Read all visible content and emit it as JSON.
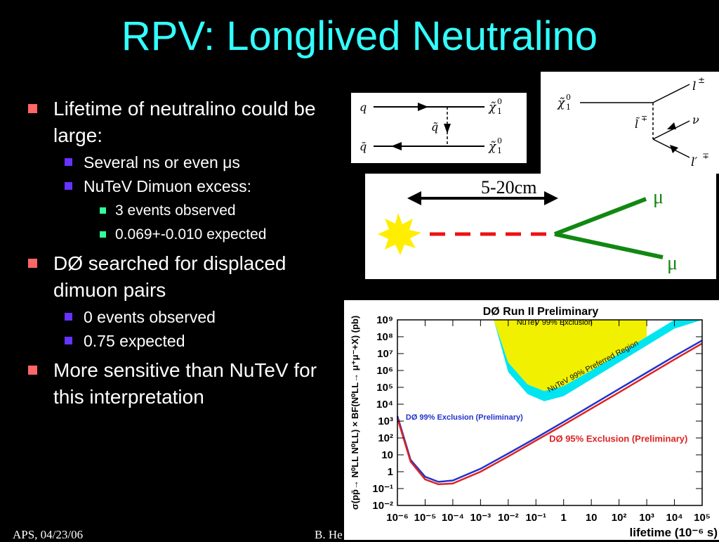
{
  "title": "RPV: Longlived Neutralino",
  "bullets": {
    "b1": "Lifetime of neutralino could be large:",
    "b1_sub1": "Several ns or even μs",
    "b1_sub2": "NuTeV Dimuon excess:",
    "b1_sub2_a": "3 events observed",
    "b1_sub2_b": "0.069+-0.010 expected",
    "b2": "DØ searched for displaced dimuon pairs",
    "b2_sub1": "0 events observed",
    "b2_sub2": "0.75 expected",
    "b3": "More sensitive than NuTeV for this interpretation"
  },
  "feynman_left": {
    "q": "q",
    "qbar": "q̄",
    "squark": "q̃",
    "chi_top": "χ̃",
    "chi_bottom": "χ̃",
    "chi_sup": "0",
    "chi_sub": "1"
  },
  "feynman_right": {
    "chi": "χ̃",
    "chi_sup": "0",
    "chi_sub": "1",
    "slepton": "l̃",
    "slepton_sup": "∓",
    "lepton": "l",
    "lepton_sup": "±",
    "nu": "ν",
    "lepton2": "l′",
    "lepton2_sup": "∓"
  },
  "displacement": {
    "distance_label": "5-20cm",
    "mu_top": "μ",
    "mu_bottom": "μ"
  },
  "colors": {
    "title": "#33ffff",
    "bullet_l1": "#ff6666",
    "bullet_l2": "#6633ff",
    "bullet_l3": "#33ff99",
    "nutev_exclusion": "#f0f000",
    "nutev_preferred": "#00e5f0",
    "d0_99": "#2233cc",
    "d0_95": "#dd2222",
    "neutralino_path": "#ee1111",
    "muon_track": "#118811",
    "vertex_star": "#ffee00"
  },
  "chart_data": {
    "type": "line",
    "title": "DØ Run II Preliminary",
    "xlabel": "lifetime (10⁻⁶ s)",
    "ylabel": "σ(pp̄→ N⁰LL N⁰LL) × BF(N⁰LL→ μ⁺μ⁻+X) (pb)",
    "x_scale": "log",
    "y_scale": "log",
    "xlim": [
      1e-06,
      100000
    ],
    "ylim": [
      0.01,
      1000000000
    ],
    "x_tick_labels": [
      "10⁻⁶",
      "10⁻⁵",
      "10⁻⁴",
      "10⁻³",
      "10⁻²",
      "10⁻¹",
      "1",
      "10",
      "10²",
      "10³",
      "10⁴",
      "10⁵"
    ],
    "y_tick_labels": [
      "10⁻²",
      "10⁻¹",
      "1",
      "10",
      "10²",
      "10³",
      "10⁴",
      "10⁵",
      "10⁶",
      "10⁷",
      "10⁸",
      "10⁹"
    ],
    "series": [
      {
        "name": "DØ 99% Exclusion (Preliminary)",
        "color": "#2233cc",
        "x": [
          1e-06,
          3e-06,
          1e-05,
          3e-05,
          0.0001,
          0.001,
          0.01,
          0.1,
          1,
          10,
          100,
          1000,
          10000,
          100000
        ],
        "y": [
          2000,
          5,
          0.5,
          0.25,
          0.3,
          1.5,
          12,
          100,
          900,
          8500,
          80000,
          750000,
          7000000,
          60000000
        ]
      },
      {
        "name": "DØ 95% Exclusion (Preliminary)",
        "color": "#dd2222",
        "x": [
          1e-06,
          3e-06,
          1e-05,
          3e-05,
          0.0001,
          0.001,
          0.01,
          0.1,
          1,
          10,
          100,
          1000,
          10000,
          100000
        ],
        "y": [
          1500,
          4,
          0.35,
          0.18,
          0.2,
          1,
          8,
          70,
          600,
          5500,
          50000,
          480000,
          4500000,
          40000000
        ]
      },
      {
        "name": "NuTeV 99%  Exclusion",
        "color": "#f0f000",
        "kind": "band",
        "x": [
          0.003,
          0.01,
          0.05,
          0.2,
          1,
          10,
          100,
          1000
        ],
        "y_low": [
          1000000000,
          3000000,
          150000,
          60000,
          120000,
          1000000,
          10000000,
          100000000
        ],
        "y_high": [
          1000000000,
          1000000000,
          1000000000,
          1000000000,
          1000000000,
          1000000000,
          1000000000,
          1000000000
        ]
      },
      {
        "name": "NuTeV 99% Preferred Region",
        "color": "#00e5f0",
        "kind": "band",
        "x": [
          0.003,
          0.01,
          0.05,
          0.2,
          1,
          10,
          100,
          1000,
          10000,
          100000
        ],
        "y_low": [
          1000000000,
          800000,
          40000,
          15000,
          30000,
          300000,
          3000000,
          30000000,
          300000000,
          1000000000
        ],
        "y_high": [
          1000000000,
          3000000,
          150000,
          60000,
          120000,
          1000000,
          10000000,
          100000000,
          1000000000,
          1000000000
        ]
      }
    ],
    "annotations": [
      "NuTeV 99%  Exclusion",
      "NuTeV 99% Preferred Region",
      "DØ 99% Exclusion (Preliminary)",
      "DØ 95% Exclusion (Preliminary)"
    ],
    "grid": false,
    "legend": "none"
  },
  "footer": {
    "left": "APS, 04/23/06",
    "mid": "B. He"
  }
}
